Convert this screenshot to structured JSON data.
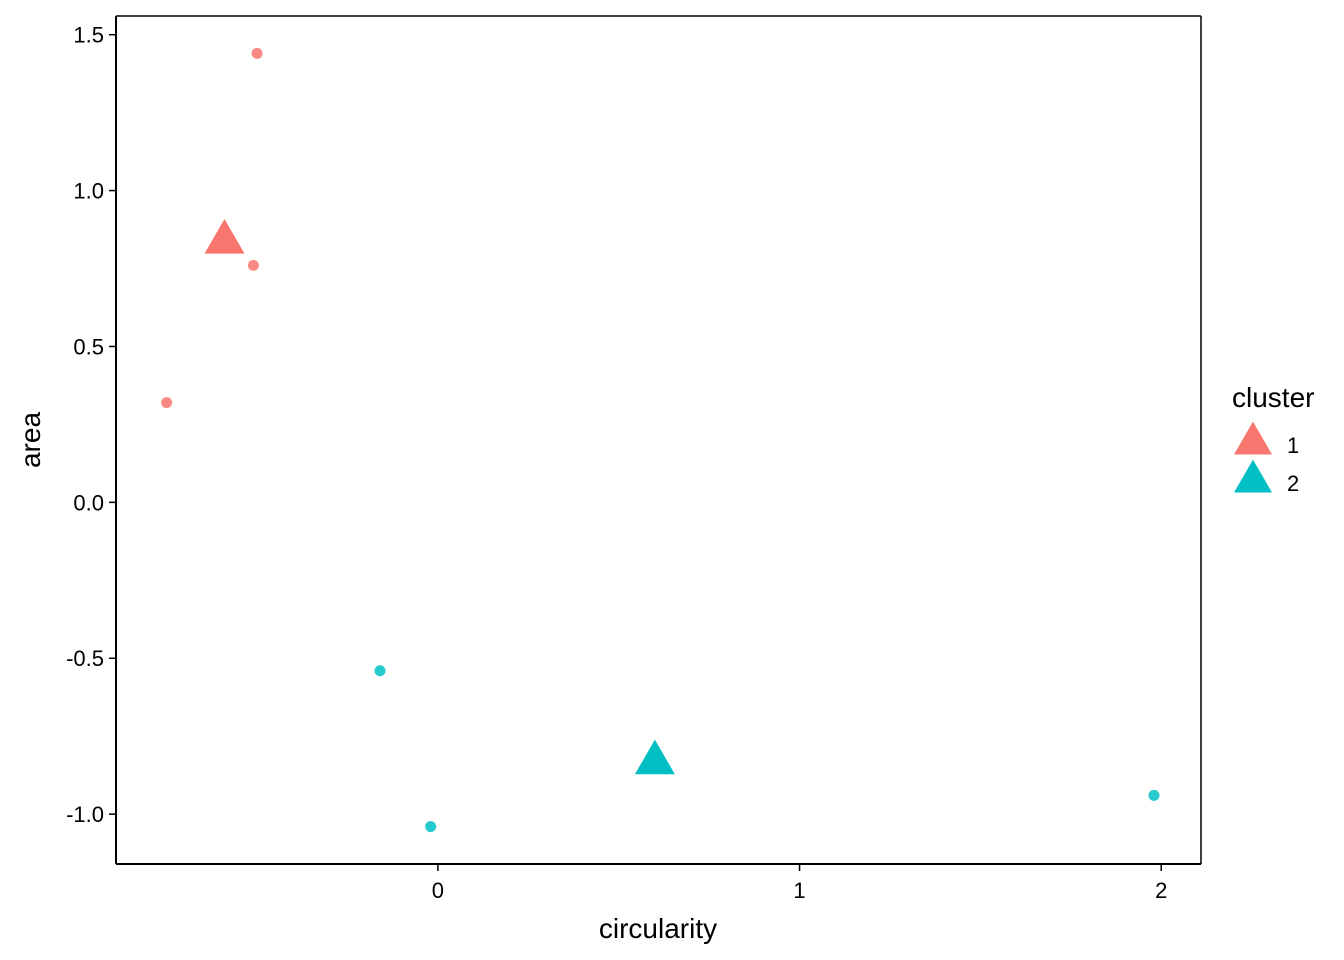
{
  "chart_data": {
    "type": "scatter",
    "xlabel": "circularity",
    "ylabel": "area",
    "xlim": [
      -0.89,
      2.11
    ],
    "ylim": [
      -1.16,
      1.56
    ],
    "x_ticks": [
      0,
      1,
      2
    ],
    "y_ticks": [
      -1.0,
      -0.5,
      0.0,
      0.5,
      1.0,
      1.5
    ],
    "x_tick_labels": [
      "0",
      "1",
      "2"
    ],
    "y_tick_labels": [
      "-1.0",
      "-0.5",
      "0.0",
      "0.5",
      "1.0",
      "1.5"
    ],
    "grid": false,
    "legend": {
      "title": "cluster",
      "position": "right",
      "entries": [
        {
          "label": "1",
          "color": "#F8766D"
        },
        {
          "label": "2",
          "color": "#00BFC4"
        }
      ]
    },
    "series": [
      {
        "name": "1",
        "color": "#F8766D",
        "points": [
          {
            "x": -0.5,
            "y": 1.44
          },
          {
            "x": -0.51,
            "y": 0.76
          },
          {
            "x": -0.75,
            "y": 0.32
          }
        ],
        "center": {
          "x": -0.59,
          "y": 0.84
        }
      },
      {
        "name": "2",
        "color": "#00BFC4",
        "points": [
          {
            "x": -0.16,
            "y": -0.54
          },
          {
            "x": -0.02,
            "y": -1.04
          },
          {
            "x": 1.98,
            "y": -0.94
          }
        ],
        "center": {
          "x": 0.6,
          "y": -0.83
        }
      }
    ]
  }
}
